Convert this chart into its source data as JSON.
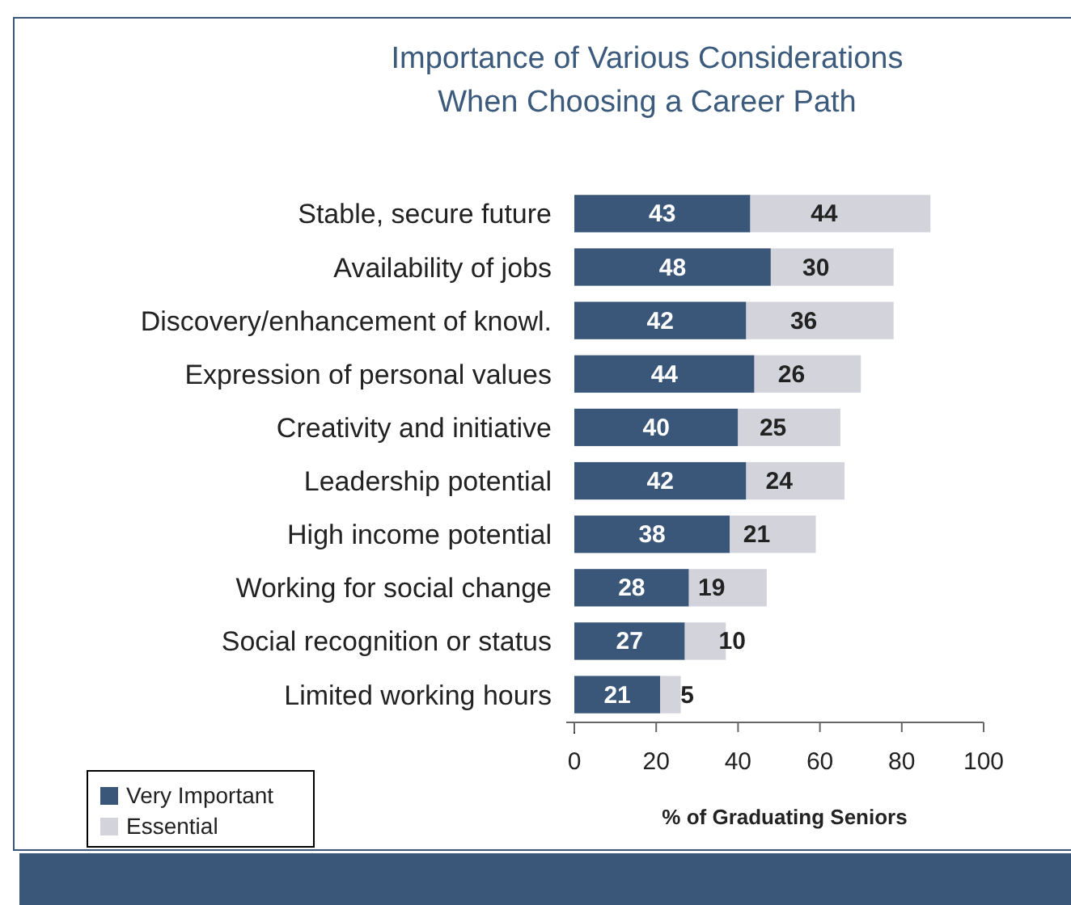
{
  "chart_data": {
    "type": "bar",
    "orientation": "horizontal",
    "stacked": true,
    "title": "Importance of Various Considerations\nWhen Choosing a Career Path",
    "xlabel": "% of Graduating Seniors",
    "categories": [
      "Stable, secure future",
      "Availability of jobs",
      "Discovery/enhancement of knowl.",
      "Expression of personal values",
      "Creativity and initiative",
      "Leadership potential",
      "High income potential",
      "Working for social change",
      "Social recognition or status",
      "Limited working hours"
    ],
    "series": [
      {
        "name": "Very Important",
        "color": "#3a5779",
        "values": [
          43,
          48,
          42,
          44,
          40,
          42,
          38,
          28,
          27,
          21
        ]
      },
      {
        "name": "Essential",
        "color": "#d3d3dc",
        "values": [
          44,
          30,
          36,
          26,
          25,
          24,
          21,
          19,
          10,
          5
        ]
      }
    ],
    "xlim": [
      0,
      100
    ],
    "xticks": [
      0,
      20,
      40,
      60,
      80,
      100
    ],
    "data_labels": true,
    "legend": "bottom left",
    "grid": false
  }
}
